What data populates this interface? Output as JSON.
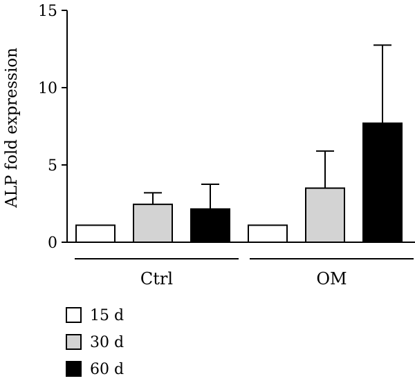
{
  "chart_data": {
    "type": "bar",
    "ylabel": "ALP fold expression",
    "ylim": [
      0,
      15
    ],
    "yticks": [
      0,
      5,
      10,
      15
    ],
    "groups": [
      "Ctrl",
      "OM"
    ],
    "series": [
      {
        "name": "15 d",
        "color": "#ffffff",
        "values": [
          1.1,
          1.1
        ],
        "errors": [
          0,
          0
        ]
      },
      {
        "name": "30 d",
        "color": "#d3d3d3",
        "values": [
          2.45,
          3.5
        ],
        "errors": [
          0.75,
          2.4
        ]
      },
      {
        "name": "60 d",
        "color": "#000000",
        "values": [
          2.15,
          7.7
        ],
        "errors": [
          1.6,
          5.05
        ]
      }
    ],
    "grid": false,
    "legend": "bottom-left"
  }
}
